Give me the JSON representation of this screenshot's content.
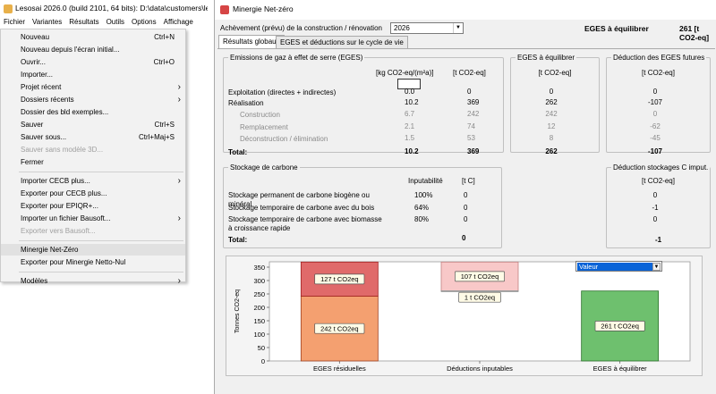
{
  "bg": {
    "title": "Lesosai 2026.0 (build 2101, 64 bits): D:\\data\\customers\\les",
    "menubar": [
      "Fichier",
      "Variantes",
      "Résultats",
      "Outils",
      "Options",
      "Affichage"
    ],
    "menu": [
      {
        "label": "Nouveau",
        "shortcut": "Ctrl+N",
        "state": "normal"
      },
      {
        "label": "Nouveau depuis l'écran initial...",
        "shortcut": "",
        "state": "normal"
      },
      {
        "label": "Ouvrir...",
        "shortcut": "Ctrl+O",
        "state": "normal"
      },
      {
        "label": "Importer...",
        "shortcut": "",
        "state": "normal"
      },
      {
        "label": "Projet récent",
        "shortcut": "",
        "state": "normal",
        "submenu": true
      },
      {
        "label": "Dossiers récents",
        "shortcut": "",
        "state": "normal",
        "submenu": true
      },
      {
        "label": "Dossier des bld exemples...",
        "shortcut": "",
        "state": "normal"
      },
      {
        "label": "Sauver",
        "shortcut": "Ctrl+S",
        "state": "normal"
      },
      {
        "label": "Sauver sous...",
        "shortcut": "Ctrl+Maj+S",
        "state": "normal"
      },
      {
        "label": "Sauver sans modèle 3D...",
        "shortcut": "",
        "state": "disabled"
      },
      {
        "label": "Fermer",
        "shortcut": "",
        "state": "normal"
      },
      {
        "sep": true
      },
      {
        "label": "Importer CECB plus...",
        "shortcut": "",
        "state": "normal",
        "submenu": true
      },
      {
        "label": "Exporter pour CECB plus...",
        "shortcut": "",
        "state": "normal"
      },
      {
        "label": "Exporter pour EPIQR+...",
        "shortcut": "",
        "state": "normal"
      },
      {
        "label": "Importer un fichier Bausoft...",
        "shortcut": "",
        "state": "normal",
        "submenu": true
      },
      {
        "label": "Exporter vers Bausoft...",
        "shortcut": "",
        "state": "disabled"
      },
      {
        "sep": true
      },
      {
        "label": "Minergie Net-Zéro",
        "shortcut": "",
        "state": "highlighted"
      },
      {
        "label": "Exporter pour Minergie Netto-Nul",
        "shortcut": "",
        "state": "normal"
      },
      {
        "sep": true
      },
      {
        "label": "Modèles",
        "shortcut": "",
        "state": "normal",
        "submenu": true
      }
    ]
  },
  "win": {
    "title": "Minergie Net-zéro",
    "achievement_label": "Achèvement (prévu) de la construction / rénovation",
    "year": "2026",
    "eges_head_label": "EGES à équilibrer",
    "eges_head_value": "261 [t CO2-eq]",
    "tabs": [
      "Résultats globaux",
      "EGES et déductions sur le cycle de vie"
    ],
    "emissions": {
      "title": "Emissions de gaz à effet de serre (EGES)",
      "col1": "[kg CO2-eq/(m²a)]",
      "col2": "[t CO2-eq]",
      "rows": [
        {
          "label": "Exploitation (directes + indirectes)",
          "v1": "0.0",
          "v2": "0",
          "style": "input"
        },
        {
          "label": "Réalisation",
          "v1": "10.2",
          "v2": "369",
          "style": "normal"
        },
        {
          "label": "Construction",
          "v1": "6.7",
          "v2": "242",
          "style": "sub"
        },
        {
          "label": "Remplacement",
          "v1": "2.1",
          "v2": "74",
          "style": "sub"
        },
        {
          "label": "Déconstruction / élimination",
          "v1": "1.5",
          "v2": "53",
          "style": "sub"
        },
        {
          "label": "Total:",
          "v1": "10.2",
          "v2": "369",
          "style": "total"
        }
      ]
    },
    "eges_eq": {
      "title": "EGES à équilibrer",
      "unit": "[t CO2-eq]",
      "values": [
        {
          "v": "0",
          "style": "normal"
        },
        {
          "v": "262",
          "style": "normal"
        },
        {
          "v": "242",
          "style": "sub"
        },
        {
          "v": "12",
          "style": "sub"
        },
        {
          "v": "8",
          "style": "sub"
        },
        {
          "v": "262",
          "style": "total"
        }
      ]
    },
    "deduction": {
      "title": "Déduction des EGES futures",
      "unit": "[t CO2-eq]",
      "values": [
        {
          "v": "0",
          "style": "normal"
        },
        {
          "v": "-107",
          "style": "normal"
        },
        {
          "v": "0",
          "style": "sub"
        },
        {
          "v": "-62",
          "style": "sub"
        },
        {
          "v": "-45",
          "style": "sub"
        },
        {
          "v": "-107",
          "style": "total"
        }
      ]
    },
    "storage": {
      "title": "Stockage de carbone",
      "col1": "Inputabilité",
      "col2": "[t C]",
      "rows": [
        {
          "label": "Stockage permanent de carbone biogène ou minéral",
          "pct": "100%",
          "v": "0"
        },
        {
          "label": "Stockage temporaire de carbone avec du bois",
          "pct": "64%",
          "v": "0"
        },
        {
          "label": "Stockage temporaire de carbone avec biomasse à croissance rapide",
          "pct": "80%",
          "v": "0"
        }
      ],
      "total_label": "Total:",
      "total_value": "0"
    },
    "deduction_storage": {
      "title": "Déduction stockages C imput.",
      "unit": "[t CO2-eq]",
      "values": [
        "0",
        "-1",
        "0"
      ],
      "total": "-1"
    },
    "value_select": "Valeur"
  },
  "chart_data": {
    "type": "bar",
    "ylabel": "Tonnes CO2-eq",
    "ylim": [
      0,
      370
    ],
    "yticks": [
      0,
      50,
      100,
      150,
      200,
      250,
      300,
      350
    ],
    "categories": [
      "EGES résiduelles",
      "Déductions inputables",
      "EGES à équilibrer"
    ],
    "segments": [
      {
        "category": 0,
        "from": 0,
        "to": 242,
        "label": "242 t CO2eq",
        "color": "#f4a070",
        "stroke": "#a04020"
      },
      {
        "category": 0,
        "from": 242,
        "to": 369,
        "label": "127 t CO2eq",
        "color": "#e06a6a",
        "stroke": "#a02020"
      },
      {
        "category": 1,
        "from": 262,
        "to": 369,
        "label": "107 t CO2eq",
        "color": "#f8c8c8",
        "stroke": "#c08080"
      },
      {
        "category": 1,
        "from": 261,
        "to": 262,
        "label": "1 t CO2eq",
        "color": "#d8d8d8",
        "stroke": "#909090"
      },
      {
        "category": 2,
        "from": 0,
        "to": 261,
        "label": "261 t CO2eq",
        "color": "#6ec06e",
        "stroke": "#2a702a"
      }
    ]
  }
}
